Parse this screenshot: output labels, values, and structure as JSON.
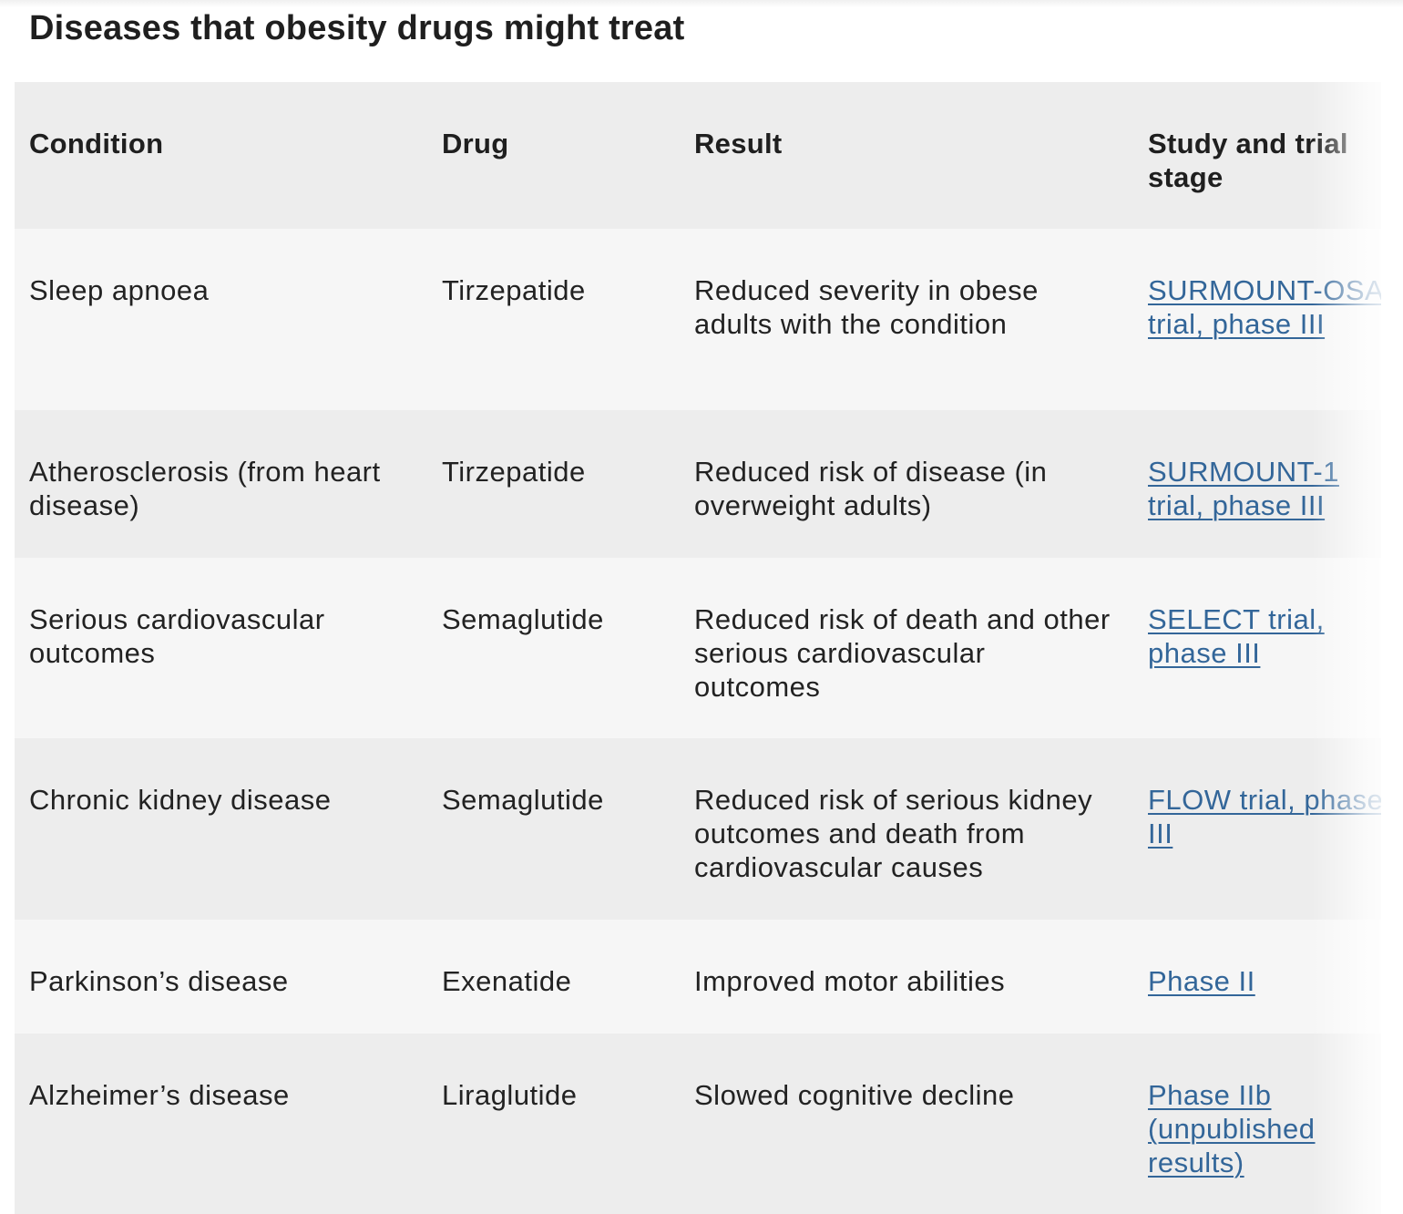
{
  "title": "Diseases that obesity drugs might treat",
  "table": {
    "headers": {
      "condition": "Condition",
      "drug": "Drug",
      "result": "Result",
      "study": "Study and trial stage"
    },
    "rows": [
      {
        "condition": "Sleep apnoea",
        "drug": "Tirzepatide",
        "result": "Reduced severity in obese adults with the condition",
        "study": "SURMOUNT-OSA trial, phase III"
      },
      {
        "condition": "Atherosclerosis (from heart disease)",
        "drug": "Tirzepatide",
        "result": "Reduced risk of disease (in overweight adults)",
        "study": "SURMOUNT-1 trial, phase III"
      },
      {
        "condition": "Serious cardiovascular outcomes",
        "drug": "Semaglutide",
        "result": "Reduced risk of death and other serious cardiovascular outcomes",
        "study": "SELECT trial, phase III"
      },
      {
        "condition": "Chronic kidney disease",
        "drug": "Semaglutide",
        "result": "Reduced risk of serious kidney outcomes and death from cardiovascular causes",
        "study": "FLOW trial, phase III"
      },
      {
        "condition": "Parkinson’s disease",
        "drug": "Exenatide",
        "result": "Improved motor abilities",
        "study": "Phase II"
      },
      {
        "condition": "Alzheimer’s disease",
        "drug": "Liraglutide",
        "result": "Slowed cognitive decline",
        "study": "Phase IIb (unpublished results)"
      }
    ]
  },
  "colors": {
    "link": "#336699",
    "header_bg": "#ededed",
    "row_light": "#f6f6f6",
    "row_dark": "#ededed",
    "text": "#222222"
  }
}
